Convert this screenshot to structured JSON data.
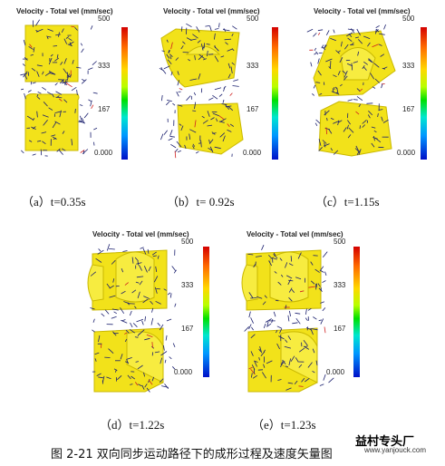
{
  "panels": [
    {
      "title": "Velocity - Total vel (mm/sec)",
      "caption": "（a）t=0.35s"
    },
    {
      "title": "Velocity - Total vel (mm/sec)",
      "caption": "（b）t= 0.92s"
    },
    {
      "title": "Velocity - Total vel (mm/sec)",
      "caption": "（c）t=1.15s"
    },
    {
      "title": "Velocity - Total vel (mm/sec)",
      "caption": "（d）t=1.22s"
    },
    {
      "title": "Velocity - Total vel (mm/sec)",
      "caption": "（e）t=1.23s"
    }
  ],
  "scale_ticks": [
    "500",
    "333",
    "167",
    "0.000"
  ],
  "figure_caption": "图 2-21  双向同步运动路径下的成形过程及速度矢量图",
  "watermark": {
    "text": "益村专头厂",
    "url": "www.yanjouck.com"
  },
  "colors": {
    "part": "#f2e21a",
    "vector": "#1a1f6e",
    "scale_top": "#d40000",
    "scale_bottom": "#0010c8"
  }
}
